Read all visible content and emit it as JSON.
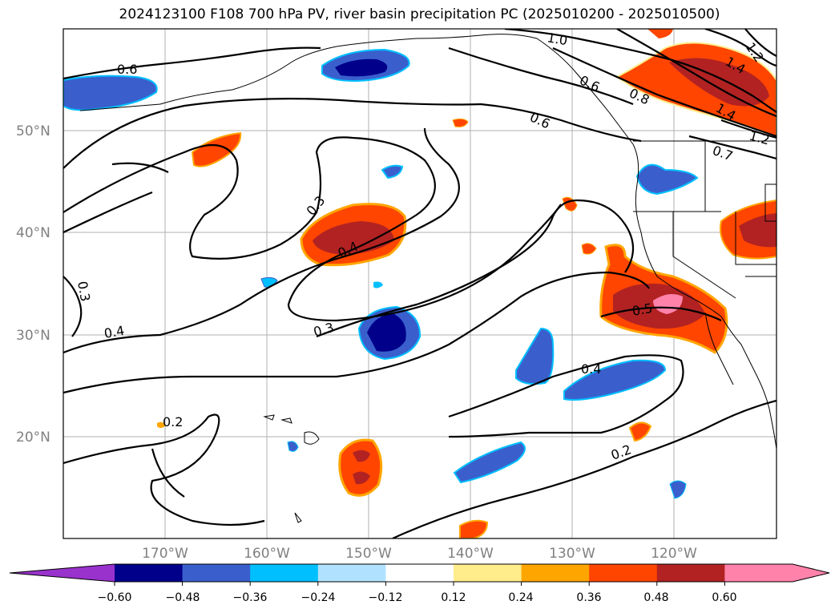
{
  "title": "2024123100 F108 700 hPa PV, river basin precipitation PC (2025010200 - 2025010500)",
  "map": {
    "lon_labels": [
      "170°W",
      "160°W",
      "150°W",
      "140°W",
      "130°W",
      "120°W"
    ],
    "lat_labels": [
      "50°N",
      "40°N",
      "30°N",
      "20°N"
    ],
    "contour_labels": [
      "0.6",
      "1.0",
      "1.2",
      "1.4",
      "0.6",
      "0.8",
      "1.4",
      "1.2",
      "0.6",
      "0.7",
      "0.3",
      "0.4",
      "0.3",
      "0.4",
      "0.3",
      "0.5",
      "0.4",
      "0.2",
      "0.2"
    ]
  },
  "colorbar": {
    "ticks": [
      "−0.60",
      "−0.48",
      "−0.36",
      "−0.24",
      "−0.12",
      "0.12",
      "0.24",
      "0.36",
      "0.48",
      "0.60"
    ],
    "under_color": "#9932cc",
    "colors": [
      "#00008b",
      "#3a5fcd",
      "#00bfff",
      "#b0e2ff",
      "#ffffff",
      "#ffec8b",
      "#ffa500",
      "#ff4500",
      "#b22222",
      "#ff82ab"
    ],
    "over_color": "#ff82ab"
  },
  "colors": {
    "grid": "#a0a0a0",
    "contour": "#000000",
    "coast": "#000000"
  }
}
